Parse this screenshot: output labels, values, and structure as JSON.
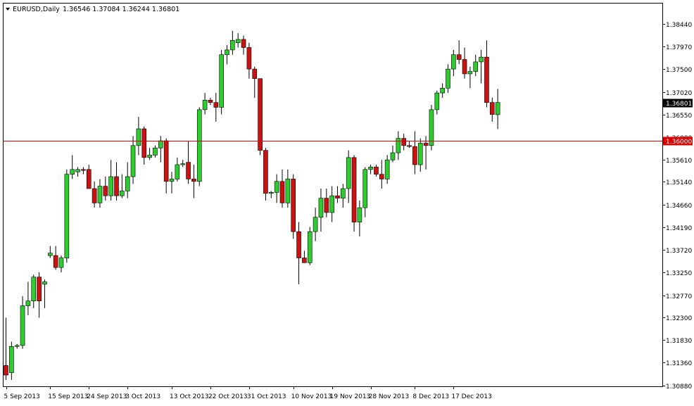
{
  "header": {
    "symbol_timeframe": "EURUSD,Daily",
    "ohlc": "1.36546 1.37084 1.36244 1.36801"
  },
  "colors": {
    "bull": "#2ecc2e",
    "bear": "#cc1111",
    "wick": "#000000",
    "hline": "#d80000",
    "axis": "#000000",
    "price_tag_bg": "#d80000",
    "current_tag_bg": "#000000"
  },
  "price_tag": "1.36000",
  "current_price_tag": "1.36801",
  "chart_data": {
    "type": "candlestick",
    "symbol": "EURUSD",
    "timeframe": "Daily",
    "ylim": [
      1.3088,
      1.3862
    ],
    "y_ticks": [
      "1.38440",
      "1.37970",
      "1.37500",
      "1.37020",
      "1.36550",
      "1.36080",
      "1.35610",
      "1.35140",
      "1.34660",
      "1.34190",
      "1.33720",
      "1.33250",
      "1.32770",
      "1.32300",
      "1.31830",
      "1.31360",
      "1.30880"
    ],
    "x_labels": [
      {
        "label": "5 Sep 2013",
        "index": 0
      },
      {
        "label": "15 Sep 2013",
        "index": 8
      },
      {
        "label": "24 Sep 2013",
        "index": 15
      },
      {
        "label": "3 Oct 2013",
        "index": 22
      },
      {
        "label": "13 Oct 2013",
        "index": 30
      },
      {
        "label": "22 Oct 2013",
        "index": 37
      },
      {
        "label": "31 Oct 2013",
        "index": 44
      },
      {
        "label": "10 Nov 2013",
        "index": 52
      },
      {
        "label": "19 Nov 2013",
        "index": 59
      },
      {
        "label": "28 Nov 2013",
        "index": 66
      },
      {
        "label": "8 Dec 2013",
        "index": 74
      },
      {
        "label": "17 Dec 2013",
        "index": 81
      }
    ],
    "hline": {
      "value": 1.36,
      "label": "1.36000"
    },
    "candles": [
      {
        "o": 1.313,
        "h": 1.323,
        "l": 1.31,
        "c": 1.311
      },
      {
        "o": 1.3115,
        "h": 1.318,
        "l": 1.31,
        "c": 1.317
      },
      {
        "o": 1.317,
        "h": 1.3175,
        "l": 1.3165,
        "c": 1.3172
      },
      {
        "o": 1.3172,
        "h": 1.3275,
        "l": 1.3165,
        "c": 1.3255
      },
      {
        "o": 1.3255,
        "h": 1.3305,
        "l": 1.3235,
        "c": 1.3265
      },
      {
        "o": 1.3265,
        "h": 1.332,
        "l": 1.325,
        "c": 1.3315
      },
      {
        "o": 1.3315,
        "h": 1.3325,
        "l": 1.323,
        "c": 1.3265
      },
      {
        "o": 1.33,
        "h": 1.331,
        "l": 1.325,
        "c": 1.3305
      },
      {
        "o": 1.336,
        "h": 1.338,
        "l": 1.3355,
        "c": 1.3365
      },
      {
        "o": 1.336,
        "h": 1.338,
        "l": 1.333,
        "c": 1.3335
      },
      {
        "o": 1.3335,
        "h": 1.336,
        "l": 1.3325,
        "c": 1.3355
      },
      {
        "o": 1.3355,
        "h": 1.354,
        "l": 1.3345,
        "c": 1.353
      },
      {
        "o": 1.353,
        "h": 1.357,
        "l": 1.352,
        "c": 1.354
      },
      {
        "o": 1.3535,
        "h": 1.3545,
        "l": 1.3525,
        "c": 1.354
      },
      {
        "o": 1.354,
        "h": 1.3545,
        "l": 1.353,
        "c": 1.3538
      },
      {
        "o": 1.354,
        "h": 1.355,
        "l": 1.35,
        "c": 1.35
      },
      {
        "o": 1.35,
        "h": 1.3515,
        "l": 1.346,
        "c": 1.347
      },
      {
        "o": 1.347,
        "h": 1.352,
        "l": 1.346,
        "c": 1.3505
      },
      {
        "o": 1.3505,
        "h": 1.3525,
        "l": 1.3475,
        "c": 1.3485
      },
      {
        "o": 1.3485,
        "h": 1.356,
        "l": 1.3475,
        "c": 1.3525
      },
      {
        "o": 1.3525,
        "h": 1.3555,
        "l": 1.3475,
        "c": 1.3485
      },
      {
        "o": 1.3485,
        "h": 1.353,
        "l": 1.348,
        "c": 1.3495
      },
      {
        "o": 1.3495,
        "h": 1.3555,
        "l": 1.348,
        "c": 1.3525
      },
      {
        "o": 1.3525,
        "h": 1.361,
        "l": 1.351,
        "c": 1.359
      },
      {
        "o": 1.359,
        "h": 1.365,
        "l": 1.357,
        "c": 1.3625
      },
      {
        "o": 1.3625,
        "h": 1.363,
        "l": 1.355,
        "c": 1.3565
      },
      {
        "o": 1.3565,
        "h": 1.3585,
        "l": 1.356,
        "c": 1.357
      },
      {
        "o": 1.357,
        "h": 1.359,
        "l": 1.3565,
        "c": 1.3585
      },
      {
        "o": 1.3585,
        "h": 1.361,
        "l": 1.3555,
        "c": 1.36
      },
      {
        "o": 1.36,
        "h": 1.3605,
        "l": 1.349,
        "c": 1.3515
      },
      {
        "o": 1.3515,
        "h": 1.3535,
        "l": 1.349,
        "c": 1.352
      },
      {
        "o": 1.352,
        "h": 1.3565,
        "l": 1.3515,
        "c": 1.355
      },
      {
        "o": 1.355,
        "h": 1.356,
        "l": 1.3545,
        "c": 1.3552
      },
      {
        "o": 1.3555,
        "h": 1.36,
        "l": 1.351,
        "c": 1.352
      },
      {
        "o": 1.352,
        "h": 1.355,
        "l": 1.348,
        "c": 1.3515
      },
      {
        "o": 1.3515,
        "h": 1.367,
        "l": 1.3505,
        "c": 1.3665
      },
      {
        "o": 1.3665,
        "h": 1.37,
        "l": 1.3655,
        "c": 1.3685
      },
      {
        "o": 1.3685,
        "h": 1.369,
        "l": 1.3675,
        "c": 1.368
      },
      {
        "o": 1.368,
        "h": 1.37,
        "l": 1.364,
        "c": 1.367
      },
      {
        "o": 1.367,
        "h": 1.379,
        "l": 1.3655,
        "c": 1.378
      },
      {
        "o": 1.378,
        "h": 1.38,
        "l": 1.376,
        "c": 1.379
      },
      {
        "o": 1.379,
        "h": 1.383,
        "l": 1.378,
        "c": 1.381
      },
      {
        "o": 1.3805,
        "h": 1.3825,
        "l": 1.3795,
        "c": 1.3812
      },
      {
        "o": 1.3812,
        "h": 1.382,
        "l": 1.378,
        "c": 1.3795
      },
      {
        "o": 1.3795,
        "h": 1.3805,
        "l": 1.373,
        "c": 1.375
      },
      {
        "o": 1.375,
        "h": 1.3755,
        "l": 1.369,
        "c": 1.373
      },
      {
        "o": 1.373,
        "h": 1.373,
        "l": 1.357,
        "c": 1.358
      },
      {
        "o": 1.358,
        "h": 1.3585,
        "l": 1.3475,
        "c": 1.349
      },
      {
        "o": 1.349,
        "h": 1.3495,
        "l": 1.348,
        "c": 1.3492
      },
      {
        "o": 1.3492,
        "h": 1.353,
        "l": 1.347,
        "c": 1.3515
      },
      {
        "o": 1.3515,
        "h": 1.354,
        "l": 1.346,
        "c": 1.347
      },
      {
        "o": 1.347,
        "h": 1.354,
        "l": 1.346,
        "c": 1.352
      },
      {
        "o": 1.352,
        "h": 1.353,
        "l": 1.3395,
        "c": 1.341
      },
      {
        "o": 1.341,
        "h": 1.343,
        "l": 1.33,
        "c": 1.3355
      },
      {
        "o": 1.3355,
        "h": 1.337,
        "l": 1.3345,
        "c": 1.3345
      },
      {
        "o": 1.3345,
        "h": 1.342,
        "l": 1.334,
        "c": 1.341
      },
      {
        "o": 1.341,
        "h": 1.346,
        "l": 1.339,
        "c": 1.344
      },
      {
        "o": 1.344,
        "h": 1.35,
        "l": 1.341,
        "c": 1.348
      },
      {
        "o": 1.348,
        "h": 1.35,
        "l": 1.344,
        "c": 1.345
      },
      {
        "o": 1.345,
        "h": 1.3505,
        "l": 1.343,
        "c": 1.3485
      },
      {
        "o": 1.3485,
        "h": 1.3505,
        "l": 1.347,
        "c": 1.348
      },
      {
        "o": 1.348,
        "h": 1.351,
        "l": 1.346,
        "c": 1.35
      },
      {
        "o": 1.35,
        "h": 1.358,
        "l": 1.347,
        "c": 1.3565
      },
      {
        "o": 1.3565,
        "h": 1.357,
        "l": 1.341,
        "c": 1.343
      },
      {
        "o": 1.343,
        "h": 1.3475,
        "l": 1.34,
        "c": 1.346
      },
      {
        "o": 1.346,
        "h": 1.3545,
        "l": 1.344,
        "c": 1.354
      },
      {
        "o": 1.354,
        "h": 1.355,
        "l": 1.353,
        "c": 1.3545
      },
      {
        "o": 1.3545,
        "h": 1.355,
        "l": 1.3525,
        "c": 1.353
      },
      {
        "o": 1.353,
        "h": 1.356,
        "l": 1.35,
        "c": 1.352
      },
      {
        "o": 1.352,
        "h": 1.357,
        "l": 1.351,
        "c": 1.356
      },
      {
        "o": 1.356,
        "h": 1.359,
        "l": 1.3555,
        "c": 1.3575
      },
      {
        "o": 1.3575,
        "h": 1.362,
        "l": 1.356,
        "c": 1.3605
      },
      {
        "o": 1.3605,
        "h": 1.3615,
        "l": 1.358,
        "c": 1.359
      },
      {
        "o": 1.359,
        "h": 1.36,
        "l": 1.3585,
        "c": 1.3588
      },
      {
        "o": 1.3588,
        "h": 1.362,
        "l": 1.353,
        "c": 1.355
      },
      {
        "o": 1.355,
        "h": 1.3605,
        "l": 1.3535,
        "c": 1.3595
      },
      {
        "o": 1.3595,
        "h": 1.361,
        "l": 1.354,
        "c": 1.359
      },
      {
        "o": 1.359,
        "h": 1.3675,
        "l": 1.358,
        "c": 1.3665
      },
      {
        "o": 1.3665,
        "h": 1.3705,
        "l": 1.3655,
        "c": 1.37
      },
      {
        "o": 1.37,
        "h": 1.372,
        "l": 1.369,
        "c": 1.371
      },
      {
        "o": 1.371,
        "h": 1.376,
        "l": 1.37,
        "c": 1.375
      },
      {
        "o": 1.375,
        "h": 1.379,
        "l": 1.3735,
        "c": 1.378
      },
      {
        "o": 1.378,
        "h": 1.381,
        "l": 1.376,
        "c": 1.377
      },
      {
        "o": 1.377,
        "h": 1.3795,
        "l": 1.373,
        "c": 1.374
      },
      {
        "o": 1.374,
        "h": 1.3755,
        "l": 1.371,
        "c": 1.3745
      },
      {
        "o": 1.3745,
        "h": 1.378,
        "l": 1.3735,
        "c": 1.3765
      },
      {
        "o": 1.3765,
        "h": 1.379,
        "l": 1.372,
        "c": 1.3775
      },
      {
        "o": 1.3775,
        "h": 1.381,
        "l": 1.367,
        "c": 1.368
      },
      {
        "o": 1.368,
        "h": 1.369,
        "l": 1.364,
        "c": 1.3655
      },
      {
        "o": 1.36546,
        "h": 1.37084,
        "l": 1.36244,
        "c": 1.36801
      }
    ]
  }
}
